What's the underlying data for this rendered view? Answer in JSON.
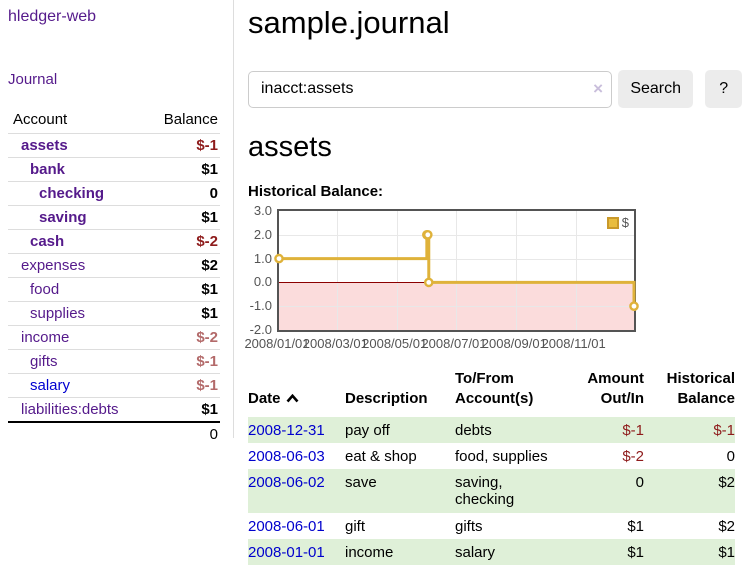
{
  "app": {
    "title": "hledger-web"
  },
  "sidebar": {
    "journal_link": "Journal",
    "table": {
      "account_header": "Account",
      "balance_header": "Balance",
      "rows": [
        {
          "account": "assets",
          "balance": "$-1",
          "depth": 1,
          "bold": true,
          "negative": true,
          "link_color": "purple"
        },
        {
          "account": "bank",
          "balance": "$1",
          "depth": 2,
          "bold": true,
          "negative": false,
          "link_color": "purple"
        },
        {
          "account": "checking",
          "balance": "0",
          "depth": 3,
          "bold": true,
          "negative": false,
          "link_color": "purple"
        },
        {
          "account": "saving",
          "balance": "$1",
          "depth": 3,
          "bold": true,
          "negative": false,
          "link_color": "purple"
        },
        {
          "account": "cash",
          "balance": "$-2",
          "depth": 2,
          "bold": true,
          "negative": true,
          "link_color": "purple"
        },
        {
          "account": "expenses",
          "balance": "$2",
          "depth": 1,
          "bold": false,
          "negative": false,
          "link_color": "purple"
        },
        {
          "account": "food",
          "balance": "$1",
          "depth": 2,
          "bold": false,
          "negative": false,
          "link_color": "purple"
        },
        {
          "account": "supplies",
          "balance": "$1",
          "depth": 2,
          "bold": false,
          "negative": false,
          "link_color": "purple"
        },
        {
          "account": "income",
          "balance": "$-2",
          "depth": 1,
          "bold": false,
          "negative": true,
          "link_color": "purple"
        },
        {
          "account": "gifts",
          "balance": "$-1",
          "depth": 2,
          "bold": false,
          "negative": true,
          "link_color": "purple"
        },
        {
          "account": "salary",
          "balance": "$-1",
          "depth": 2,
          "bold": false,
          "negative": true,
          "link_color": "blue"
        },
        {
          "account": "liabilities:debts",
          "balance": "$1",
          "depth": 1,
          "bold": false,
          "negative": false,
          "link_color": "purple"
        }
      ],
      "total": "0"
    }
  },
  "header": {
    "title": "sample.journal"
  },
  "search": {
    "value": "inacct:assets",
    "clear_icon": "×",
    "button_label": "Search",
    "help_label": "?"
  },
  "account_page": {
    "heading": "assets",
    "chart_label": "Historical Balance:"
  },
  "chart_data": {
    "type": "line",
    "step": true,
    "title": "Historical Balance:",
    "series": [
      {
        "name": "$",
        "points": [
          {
            "x": "2008-01-01",
            "y": 1
          },
          {
            "x": "2008-06-01",
            "y": 2
          },
          {
            "x": "2008-06-02",
            "y": 2
          },
          {
            "x": "2008-06-03",
            "y": 0
          },
          {
            "x": "2008-12-31",
            "y": -1
          }
        ]
      }
    ],
    "xlim": [
      "2008-01-01",
      "2008-12-31"
    ],
    "ylim": [
      -2,
      3
    ],
    "y_ticks": [
      "3.0",
      "2.0",
      "1.0",
      "0.0",
      "-1.0",
      "-2.0"
    ],
    "x_ticks": [
      "2008/01/01",
      "2008/03/01",
      "2008/05/01",
      "2008/07/01",
      "2008/09/01",
      "2008/11/01"
    ],
    "legend": {
      "label": "$",
      "position": "top-right"
    },
    "grid": true,
    "colors": {
      "line": "#dfb23a",
      "marker_fill": "#ffffff",
      "legend_swatch": "#e9bd3e",
      "legend_swatch_border": "#c9992a",
      "zero_line": "#8b0000",
      "negative_region": "#fbdcdc",
      "grid": "#e8e8e8",
      "border": "#545454",
      "tick_text": "#545454"
    }
  },
  "register": {
    "headers": {
      "date": "Date",
      "description": "Description",
      "accounts": "To/From Account(s)",
      "amount": "Amount Out/In",
      "balance": "Historical Balance"
    },
    "sort": {
      "column": "date",
      "direction": "asc",
      "icon": "chevron-up"
    },
    "rows": [
      {
        "date": "2008-12-31",
        "description": "pay off",
        "accounts": "debts",
        "amount": "$-1",
        "amount_negative": true,
        "balance": "$-1",
        "balance_negative": true,
        "shaded": true
      },
      {
        "date": "2008-06-03",
        "description": "eat & shop",
        "accounts": "food, supplies",
        "amount": "$-2",
        "amount_negative": true,
        "balance": "0",
        "balance_negative": false,
        "shaded": false
      },
      {
        "date": "2008-06-02",
        "description": "save",
        "accounts": "saving,\nchecking",
        "amount": "0",
        "amount_negative": false,
        "balance": "$2",
        "balance_negative": false,
        "shaded": true
      },
      {
        "date": "2008-06-01",
        "description": "gift",
        "accounts": "gifts",
        "amount": "$1",
        "amount_negative": false,
        "balance": "$2",
        "balance_negative": false,
        "shaded": false
      },
      {
        "date": "2008-01-01",
        "description": "income",
        "accounts": "salary",
        "amount": "$1",
        "amount_negative": false,
        "balance": "$1",
        "balance_negative": false,
        "shaded": true
      }
    ]
  }
}
